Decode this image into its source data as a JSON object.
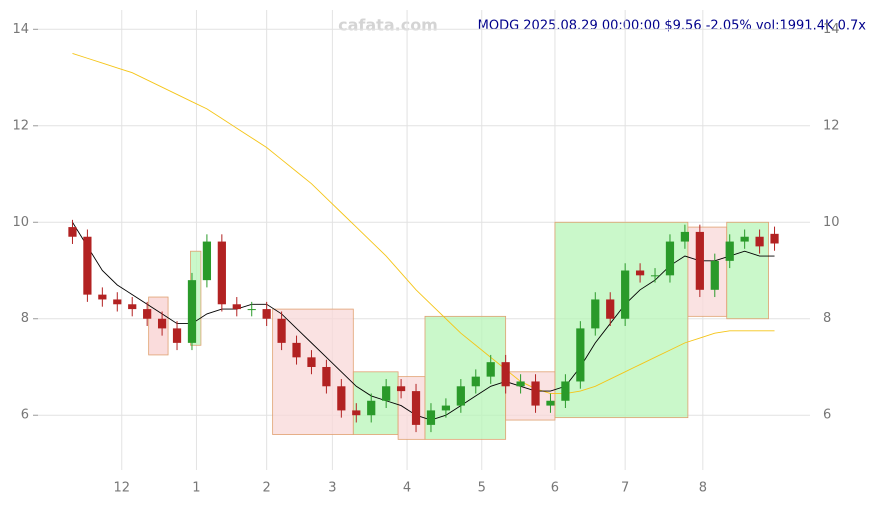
{
  "chart_data": {
    "type": "candlestick",
    "title": "MODG 2025.08.29 00:00:00 $9.56 -2.05% vol:1991.4K 0.7x",
    "watermark": "cafata.com",
    "xlim": [
      -0.5,
      47.5
    ],
    "ylim": [
      5.3,
      14.4
    ],
    "yticks": [
      6,
      8,
      10,
      12,
      14
    ],
    "xticks": [
      {
        "value": 3.3,
        "label": "12"
      },
      {
        "value": 8.3,
        "label": "1"
      },
      {
        "value": 13,
        "label": "2"
      },
      {
        "value": 17.4,
        "label": "3"
      },
      {
        "value": 22.4,
        "label": "4"
      },
      {
        "value": 27.4,
        "label": "5"
      },
      {
        "value": 32.3,
        "label": "6"
      },
      {
        "value": 37,
        "label": "7"
      },
      {
        "value": 42.2,
        "label": "8"
      }
    ],
    "grid": true,
    "up_color": "#2a9a2a",
    "down_color": "#b22222",
    "open": [
      9.9,
      9.7,
      8.5,
      8.4,
      8.3,
      8.2,
      8.0,
      7.8,
      7.5,
      8.8,
      9.6,
      8.3,
      8.2,
      8.2,
      8.0,
      7.5,
      7.2,
      7.0,
      6.6,
      6.1,
      6.0,
      6.3,
      6.6,
      6.5,
      5.8,
      6.1,
      6.2,
      6.6,
      6.8,
      7.1,
      6.6,
      6.7,
      6.2,
      6.3,
      6.7,
      7.8,
      8.4,
      8.0,
      9.0,
      8.9,
      8.9,
      9.6,
      9.8,
      8.6,
      9.2,
      9.6,
      9.7,
      9.76
    ],
    "high": [
      10.05,
      9.85,
      8.65,
      8.55,
      8.45,
      8.35,
      8.15,
      7.95,
      8.95,
      9.75,
      9.75,
      8.45,
      8.35,
      8.35,
      8.15,
      7.65,
      7.35,
      7.15,
      6.75,
      6.25,
      6.45,
      6.75,
      6.75,
      6.65,
      6.25,
      6.35,
      6.75,
      6.95,
      7.25,
      7.25,
      6.85,
      6.85,
      6.45,
      6.85,
      7.95,
      8.55,
      8.55,
      9.15,
      9.15,
      9.05,
      9.75,
      9.95,
      9.95,
      9.35,
      9.75,
      9.85,
      9.85,
      9.91
    ],
    "low": [
      9.55,
      8.35,
      8.25,
      8.15,
      8.05,
      7.85,
      7.65,
      7.35,
      7.35,
      8.65,
      8.15,
      8.05,
      8.05,
      7.85,
      7.35,
      7.05,
      6.85,
      6.45,
      5.95,
      5.85,
      5.85,
      6.15,
      6.35,
      5.65,
      5.65,
      5.95,
      6.05,
      6.45,
      6.65,
      6.45,
      6.45,
      6.05,
      6.05,
      6.15,
      6.55,
      7.65,
      7.85,
      7.85,
      8.75,
      8.75,
      8.75,
      9.45,
      8.45,
      8.45,
      9.05,
      9.45,
      9.35,
      9.41
    ],
    "close": [
      9.7,
      8.5,
      8.4,
      8.3,
      8.2,
      8.0,
      7.8,
      7.5,
      8.8,
      9.6,
      8.3,
      8.2,
      8.2,
      8.0,
      7.5,
      7.2,
      7.0,
      6.6,
      6.1,
      6.0,
      6.3,
      6.6,
      6.5,
      5.8,
      6.1,
      6.2,
      6.6,
      6.8,
      7.1,
      6.6,
      6.7,
      6.2,
      6.3,
      6.7,
      7.8,
      8.4,
      8.0,
      9.0,
      8.9,
      8.9,
      9.6,
      9.8,
      8.6,
      9.2,
      9.6,
      9.7,
      9.5,
      9.56
    ],
    "lines": [
      {
        "color": "#f5c518",
        "values": [
          13.5,
          13.4,
          13.3,
          13.2,
          13.1,
          12.95,
          12.8,
          12.65,
          12.5,
          12.35,
          12.15,
          11.95,
          11.75,
          11.55,
          11.3,
          11.05,
          10.8,
          10.5,
          10.2,
          9.9,
          9.6,
          9.3,
          8.95,
          8.6,
          8.3,
          8.0,
          7.7,
          7.45,
          7.2,
          6.95,
          6.7,
          6.55,
          6.45,
          6.45,
          6.5,
          6.6,
          6.75,
          6.9,
          7.05,
          7.2,
          7.35,
          7.5,
          7.6,
          7.7,
          7.75,
          7.75,
          7.75,
          7.75
        ]
      },
      {
        "color": "#000000",
        "values": [
          10.0,
          9.5,
          9.0,
          8.7,
          8.5,
          8.3,
          8.1,
          7.9,
          7.9,
          8.1,
          8.2,
          8.2,
          8.3,
          8.3,
          8.1,
          7.8,
          7.5,
          7.2,
          6.9,
          6.6,
          6.4,
          6.3,
          6.2,
          6.0,
          5.9,
          6.0,
          6.2,
          6.4,
          6.6,
          6.7,
          6.6,
          6.5,
          6.5,
          6.6,
          7.0,
          7.5,
          7.9,
          8.3,
          8.6,
          8.8,
          9.1,
          9.3,
          9.2,
          9.2,
          9.3,
          9.4,
          9.3,
          9.3
        ]
      }
    ],
    "zones": [
      {
        "x0": 5.1,
        "x1": 6.4,
        "low": 7.25,
        "high": 8.45,
        "color": "#f8d0d0"
      },
      {
        "x0": 7.9,
        "x1": 8.6,
        "low": 7.45,
        "high": 9.4,
        "color": "#b8f5b8"
      },
      {
        "x0": 13.4,
        "x1": 18.8,
        "low": 5.6,
        "high": 8.2,
        "color": "#f8d8d8"
      },
      {
        "x0": 18.8,
        "x1": 21.8,
        "low": 5.6,
        "high": 6.9,
        "color": "#b8f5b8"
      },
      {
        "x0": 21.8,
        "x1": 23.6,
        "low": 5.5,
        "high": 6.8,
        "color": "#f8d8d8"
      },
      {
        "x0": 23.6,
        "x1": 29.0,
        "low": 5.5,
        "high": 8.05,
        "color": "#b8f5b8"
      },
      {
        "x0": 29.0,
        "x1": 32.3,
        "low": 5.9,
        "high": 6.9,
        "color": "#f8d8d8"
      },
      {
        "x0": 32.3,
        "x1": 41.2,
        "low": 5.95,
        "high": 10.0,
        "color": "#b8f5b8"
      },
      {
        "x0": 41.2,
        "x1": 43.8,
        "low": 8.05,
        "high": 9.9,
        "color": "#f8d8d8"
      },
      {
        "x0": 43.8,
        "x1": 46.6,
        "low": 8.0,
        "high": 10.0,
        "color": "#b8f5b8"
      }
    ]
  }
}
